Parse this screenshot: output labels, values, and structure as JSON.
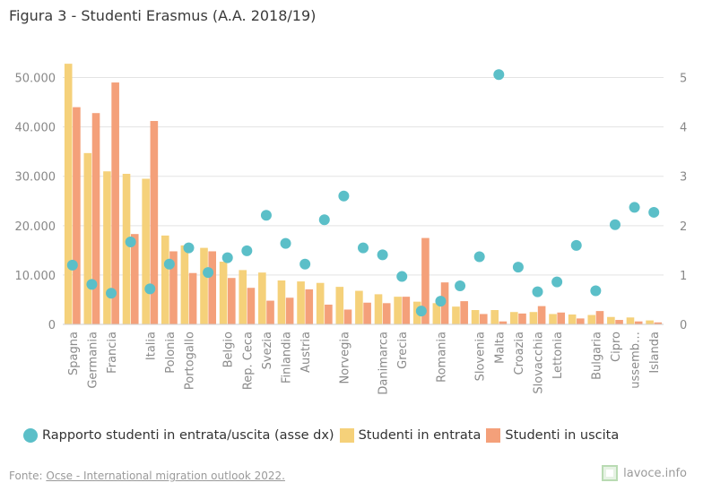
{
  "title": "Figura 3 - Studenti Erasmus (A.A. 2018/19)",
  "source_prefix": "Fonte: ",
  "source_link": "Ocse - International migration outlook 2022.",
  "brand": "lavoce.info",
  "colors": {
    "ratio": "#5bbfc8",
    "entrata": "#f5d17a",
    "uscita": "#f4a07a",
    "grid": "#e3e3e3",
    "axis_text": "#888888"
  },
  "legend": [
    {
      "label": "Rapporto studenti in entrata/uscita (asse dx)",
      "color": "#5bbfc8",
      "shape": "circle"
    },
    {
      "label": "Studenti in entrata",
      "color": "#f5d17a",
      "shape": "square"
    },
    {
      "label": "Studenti in uscita",
      "color": "#f4a07a",
      "shape": "square"
    }
  ],
  "chart_data": {
    "type": "bar",
    "title": "Figura 3 - Studenti Erasmus (A.A. 2018/19)",
    "ylim": [
      0,
      55000
    ],
    "y_ticks": [
      0,
      10000,
      20000,
      30000,
      40000,
      50000
    ],
    "y_tick_labels": [
      "0",
      "10.000",
      "20.000",
      "30.000",
      "40.000",
      "50.000"
    ],
    "y2lim": [
      0,
      5.5
    ],
    "y2_ticks": [
      0,
      1,
      2,
      3,
      4,
      5
    ],
    "y2_tick_labels": [
      "0",
      "1",
      "2",
      "3",
      "4",
      "5"
    ],
    "grid": true,
    "legend_position": "bottom",
    "categories": [
      "Spagna",
      "Germania",
      "Francia",
      "",
      "Italia",
      "Polonia",
      "Portogallo",
      "",
      "Belgio",
      "Rep. Ceca",
      "Svezia",
      "Finlandia",
      "Austria",
      "",
      "Norvegia",
      "",
      "Danimarca",
      "Grecia",
      "",
      "Romania",
      "",
      "Slovenia",
      "Malta",
      "Croazia",
      "Slovacchia",
      "Lettonia",
      "",
      "Bulgaria",
      "Cipro",
      "ussemb…",
      "Islanda"
    ],
    "series": [
      {
        "name": "Studenti in entrata",
        "kind": "bar",
        "values": [
          52800,
          34700,
          31000,
          30500,
          29500,
          18000,
          16000,
          15500,
          12700,
          11000,
          10500,
          8900,
          8700,
          8400,
          7600,
          6800,
          6100,
          5600,
          4600,
          4300,
          3600,
          2900,
          2900,
          2500,
          2500,
          2100,
          2000,
          1900,
          1500,
          1400,
          800
        ]
      },
      {
        "name": "Studenti in uscita",
        "kind": "bar",
        "values": [
          44000,
          42800,
          49000,
          18300,
          41200,
          14800,
          10400,
          14800,
          9400,
          7400,
          4800,
          5400,
          7100,
          4000,
          3000,
          4400,
          4300,
          5600,
          17500,
          8500,
          4700,
          2100,
          600,
          2200,
          3700,
          2400,
          1200,
          2700,
          900,
          600,
          400
        ]
      },
      {
        "name": "Rapporto studenti in entrata/uscita (asse dx)",
        "kind": "scatter",
        "axis": "right",
        "values": [
          1.2,
          0.81,
          0.63,
          1.67,
          0.72,
          1.22,
          1.55,
          1.05,
          1.35,
          1.49,
          2.21,
          1.64,
          1.22,
          2.12,
          2.6,
          1.55,
          1.41,
          0.97,
          0.27,
          0.47,
          0.78,
          1.37,
          5.06,
          1.16,
          0.66,
          0.86,
          1.6,
          0.68,
          2.02,
          2.37,
          2.27
        ]
      }
    ]
  }
}
